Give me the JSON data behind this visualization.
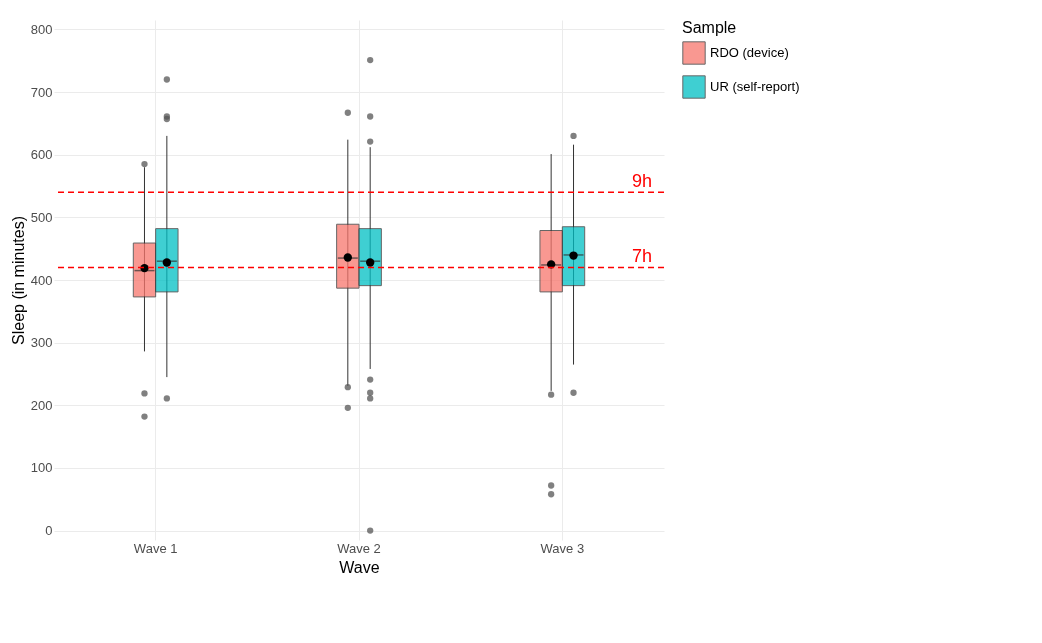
{
  "chart_data": {
    "type": "box",
    "xlabel": "Wave",
    "ylabel": "Sleep (in minutes)",
    "legend_title": "Sample",
    "categories": [
      "Wave 1",
      "Wave 2",
      "Wave 3"
    ],
    "ylim": [
      -15,
      815
    ],
    "yticks": [
      0,
      100,
      200,
      300,
      400,
      500,
      600,
      700,
      800
    ],
    "grid": true,
    "legend": "right",
    "series": [
      {
        "name": "RDO (device)",
        "color": "#f8766d",
        "boxes": [
          {
            "low": 286,
            "q1": 373,
            "median": 415,
            "q3": 459,
            "high": 580,
            "mean": 419,
            "outliers": [
              585,
              219,
              182
            ]
          },
          {
            "low": 231,
            "q1": 387,
            "median": 435,
            "q3": 489,
            "high": 624,
            "mean": 436,
            "outliers": [
              667,
              229,
              196
            ]
          },
          {
            "low": 223,
            "q1": 381,
            "median": 424,
            "q3": 479,
            "high": 601,
            "mean": 425,
            "outliers": [
              217,
              72,
              58
            ]
          }
        ]
      },
      {
        "name": "UR (self-report)",
        "color": "#00bfc4",
        "boxes": [
          {
            "low": 245,
            "q1": 381,
            "median": 430,
            "q3": 482,
            "high": 630,
            "mean": 428,
            "outliers": [
              720,
              661,
              657,
              211
            ]
          },
          {
            "low": 258,
            "q1": 391,
            "median": 430,
            "q3": 482,
            "high": 612,
            "mean": 428,
            "outliers": [
              751,
              661,
              621,
              241,
              220,
              211,
              0
            ]
          },
          {
            "low": 265,
            "q1": 391,
            "median": 440,
            "q3": 485,
            "high": 616,
            "mean": 439,
            "outliers": [
              630,
              220
            ]
          }
        ]
      }
    ],
    "ref_lines": [
      {
        "axis": "y",
        "value": 540,
        "label": "9h",
        "color": "#ff0000",
        "line_style": "dashed"
      },
      {
        "axis": "y",
        "value": 420,
        "label": "7h",
        "color": "#ff0000",
        "line_style": "dashed"
      }
    ]
  }
}
